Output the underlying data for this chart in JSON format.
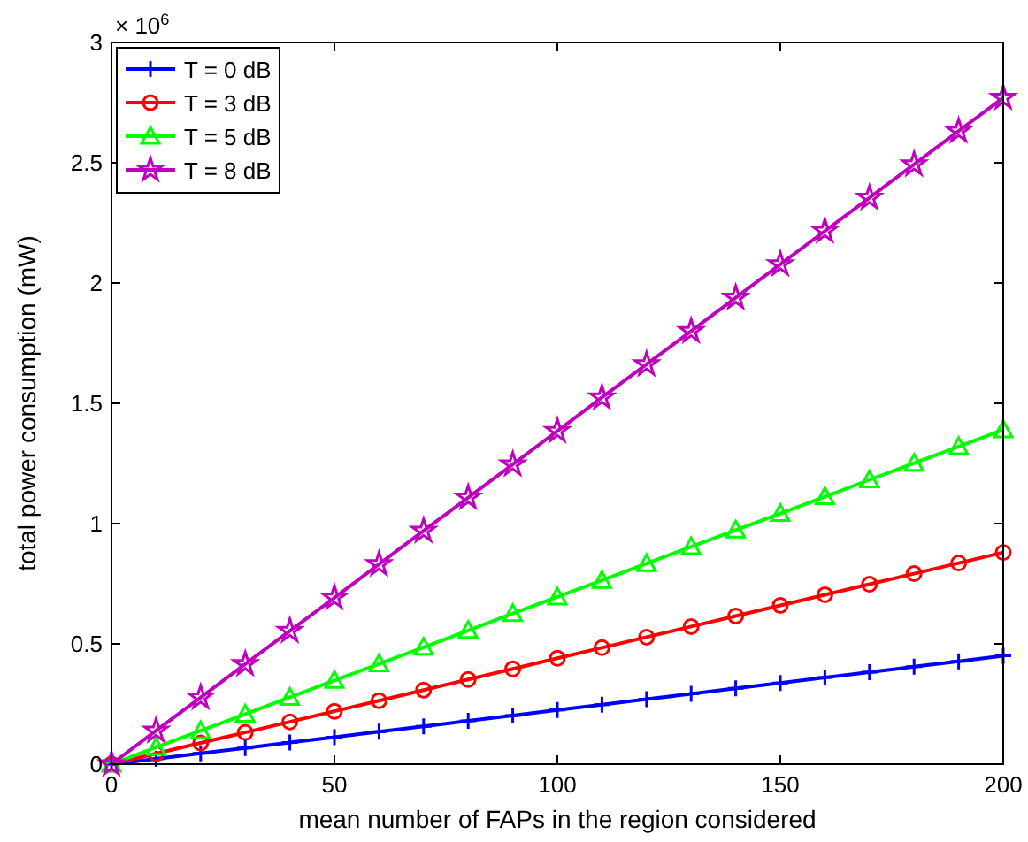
{
  "chart_data": {
    "type": "line",
    "xlabel": "mean number of FAPs in the region considered",
    "ylabel": "total power consumption (mW)",
    "annotations": [
      "× 10$^{6}$"
    ],
    "x": [
      0,
      10,
      20,
      30,
      40,
      50,
      60,
      70,
      80,
      90,
      100,
      110,
      120,
      130,
      140,
      150,
      160,
      170,
      180,
      190,
      200
    ],
    "xlim": [
      0,
      200
    ],
    "xticks": [
      0,
      50,
      100,
      150,
      200
    ],
    "ylim": [
      0,
      3
    ],
    "yticks": [
      0,
      0.5,
      1,
      1.5,
      2,
      2.5,
      3
    ],
    "grid": false,
    "legend": "top left",
    "line_style": "solid",
    "series": [
      {
        "name": "T = 0 dB",
        "color": "#0000ff",
        "marker": "cross",
        "values": [
          0,
          0.022,
          0.045,
          0.067,
          0.09,
          0.112,
          0.135,
          0.157,
          0.18,
          0.202,
          0.225,
          0.247,
          0.27,
          0.292,
          0.315,
          0.337,
          0.36,
          0.382,
          0.405,
          0.427,
          0.45
        ]
      },
      {
        "name": "T = 3 dB",
        "color": "#ff0000",
        "marker": "circle",
        "values": [
          0,
          0.044,
          0.088,
          0.132,
          0.176,
          0.22,
          0.264,
          0.308,
          0.352,
          0.396,
          0.44,
          0.484,
          0.528,
          0.572,
          0.616,
          0.66,
          0.704,
          0.748,
          0.792,
          0.836,
          0.88
        ]
      },
      {
        "name": "T = 5 dB",
        "color": "#00ff00",
        "marker": "triangle",
        "values": [
          0,
          0.07,
          0.139,
          0.208,
          0.278,
          0.348,
          0.417,
          0.486,
          0.556,
          0.626,
          0.695,
          0.764,
          0.834,
          0.904,
          0.973,
          1.042,
          1.112,
          1.182,
          1.251,
          1.32,
          1.39
        ]
      },
      {
        "name": "T = 8 dB",
        "color": "#bf00bf",
        "marker": "star",
        "values": [
          0,
          0.139,
          0.277,
          0.416,
          0.554,
          0.692,
          0.831,
          0.97,
          1.108,
          1.246,
          1.385,
          1.524,
          1.662,
          1.8,
          1.939,
          2.078,
          2.216,
          2.354,
          2.493,
          2.632,
          2.77
        ]
      }
    ]
  }
}
